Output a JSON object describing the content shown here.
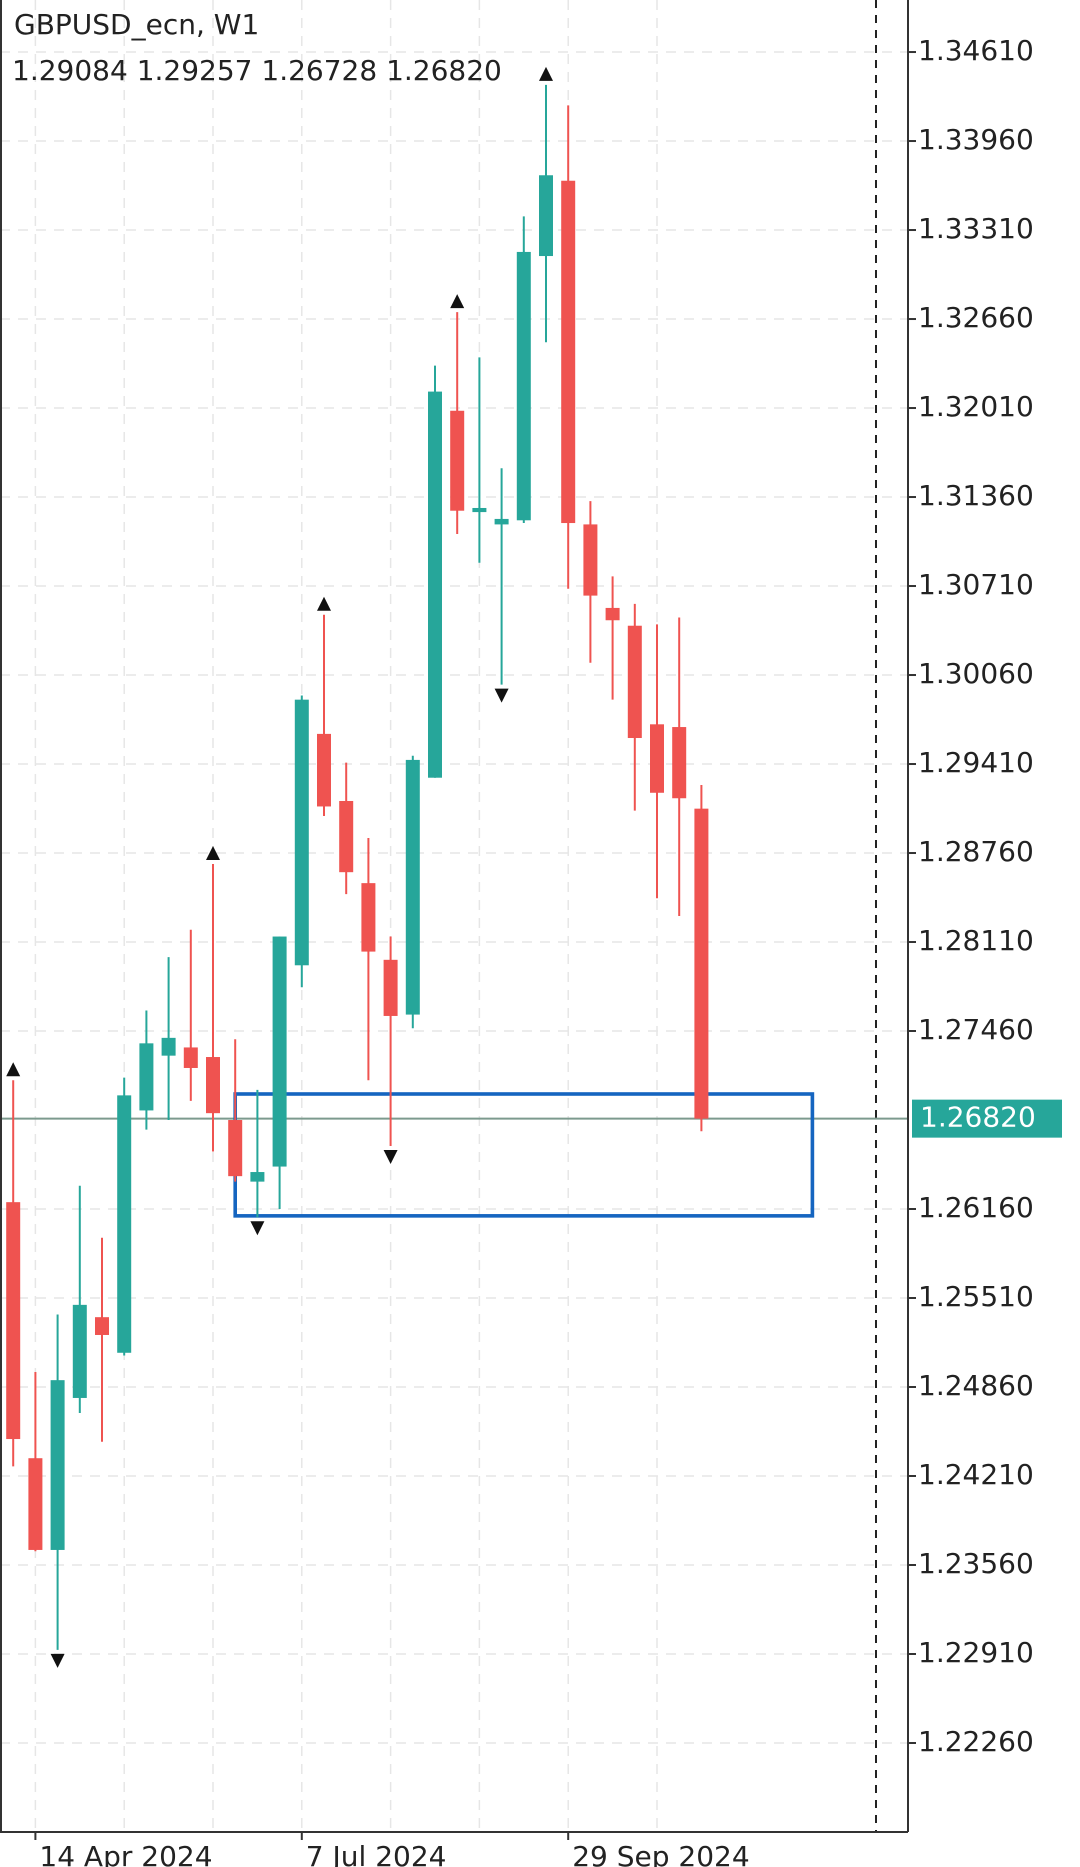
{
  "chart_data": {
    "type": "candlestick",
    "title": "GBPUSD_ecn, W1",
    "subtitle": "1.29084 1.29257 1.26728 1.26820",
    "categories": [
      null,
      "14 Apr 2024",
      null,
      null,
      null,
      null,
      null,
      null,
      null,
      null,
      null,
      null,
      null,
      "7 Jul 2024",
      null,
      null,
      null,
      null,
      null,
      null,
      null,
      null,
      null,
      null,
      null,
      "29 Sep 2024",
      null,
      null,
      null,
      null,
      null,
      null
    ],
    "open": [
      1.2621,
      1.2434,
      1.2367,
      1.2478,
      1.2537,
      1.2511,
      1.2688,
      1.2728,
      1.2734,
      1.2727,
      1.2681,
      1.2636,
      1.2647,
      1.2794,
      1.2963,
      1.2914,
      1.2854,
      1.2798,
      1.2758,
      1.2931,
      1.3199,
      1.3125,
      1.3116,
      1.3119,
      1.3312,
      1.3367,
      1.3116,
      1.3055,
      1.3042,
      1.297,
      1.2968,
      1.29084
    ],
    "high": [
      1.271,
      1.2497,
      1.2539,
      1.2633,
      1.2595,
      1.2712,
      1.2761,
      1.28,
      1.282,
      1.2868,
      1.274,
      1.2703,
      1.2815,
      1.2991,
      1.305,
      1.2942,
      1.2887,
      1.2815,
      1.2947,
      1.3232,
      1.3271,
      1.3238,
      1.3157,
      1.3341,
      1.3437,
      1.3422,
      1.3133,
      1.3078,
      1.3058,
      1.3043,
      1.3048,
      1.29257
    ],
    "low": [
      1.2428,
      1.2366,
      1.2294,
      1.2467,
      1.2446,
      1.2509,
      1.2674,
      1.2681,
      1.2695,
      1.2658,
      1.2636,
      1.261,
      1.2616,
      1.2778,
      1.2903,
      1.2846,
      1.271,
      1.2662,
      1.2748,
      1.2931,
      1.3109,
      1.3088,
      1.2999,
      1.3117,
      1.3249,
      1.3069,
      1.3015,
      1.2988,
      1.2907,
      1.2843,
      1.283,
      1.26728
    ],
    "close": [
      1.2448,
      1.2367,
      1.2491,
      1.2546,
      1.2524,
      1.2699,
      1.2737,
      1.2741,
      1.2719,
      1.2686,
      1.264,
      1.2643,
      1.2815,
      1.2988,
      1.291,
      1.2862,
      1.2804,
      1.2757,
      1.2944,
      1.3213,
      1.3126,
      1.3128,
      1.312,
      1.3315,
      1.3371,
      1.3117,
      1.3064,
      1.3046,
      1.296,
      1.292,
      1.2916,
      1.2682
    ],
    "colors": {
      "up": "#26a69a",
      "down": "#ef5350"
    },
    "ylim": [
      1.2161,
      1.3499
    ],
    "yticks": [
      {
        "value": 1.3461,
        "label": "1.34610"
      },
      {
        "value": 1.3396,
        "label": "1.33960"
      },
      {
        "value": 1.3331,
        "label": "1.33310"
      },
      {
        "value": 1.3266,
        "label": "1.32660"
      },
      {
        "value": 1.3201,
        "label": "1.32010"
      },
      {
        "value": 1.3136,
        "label": "1.31360"
      },
      {
        "value": 1.3071,
        "label": "1.30710"
      },
      {
        "value": 1.3006,
        "label": "1.30060"
      },
      {
        "value": 1.2941,
        "label": "1.29410"
      },
      {
        "value": 1.2876,
        "label": "1.28760"
      },
      {
        "value": 1.2811,
        "label": "1.28110"
      },
      {
        "value": 1.2746,
        "label": "1.27460"
      },
      {
        "value": 1.2616,
        "label": "1.26160"
      },
      {
        "value": 1.2551,
        "label": "1.25510"
      },
      {
        "value": 1.2486,
        "label": "1.24860"
      },
      {
        "value": 1.2421,
        "label": "1.24210"
      },
      {
        "value": 1.2356,
        "label": "1.23560"
      },
      {
        "value": 1.2291,
        "label": "1.22910"
      },
      {
        "value": 1.2226,
        "label": "1.22260"
      }
    ],
    "grid": true,
    "current_price": {
      "value": 1.2682,
      "label": "1.26820",
      "color": "#26a69a"
    },
    "rectangle": {
      "from": 10,
      "to": 36,
      "top": 1.27,
      "bottom": 1.2611,
      "color": "#1565c0"
    },
    "fractals_up": [
      0,
      9,
      14,
      20,
      24
    ],
    "fractals_down": [
      2,
      11,
      17,
      22
    ]
  }
}
